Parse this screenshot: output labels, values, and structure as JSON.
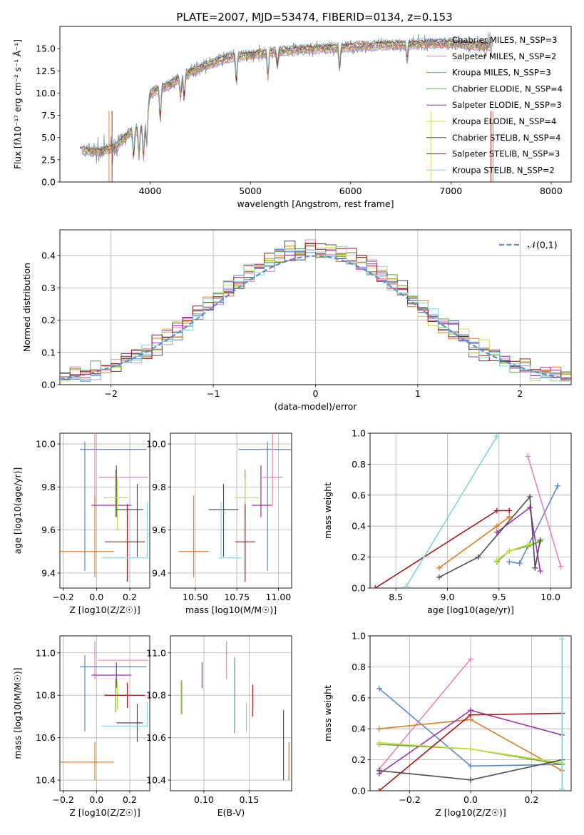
{
  "figure": {
    "title": "PLATE=2007, MJD=53474, FIBERID=0134, z=0.153"
  },
  "colors": {
    "c_mil": "#5b84d6",
    "s_mil": "#e184b9",
    "k_mil": "#e07b24",
    "c_elo": "#67a847",
    "s_elo": "#9b2fb5",
    "k_elo": "#c9e33c",
    "c_ste": "#4d4d4d",
    "s_ste": "#a31818",
    "k_ste": "#7fd6d8",
    "data": "#808080",
    "normal": "#5b8bd0"
  },
  "chart_data": [
    {
      "id": "spectrum",
      "type": "line",
      "xlabel": "wavelength [Angstrom, rest frame]",
      "ylabel": "Flux [fλ10⁻¹⁷ erg cm⁻² s⁻¹ Å⁻¹]",
      "xlim": [
        3100,
        8200
      ],
      "ylim": [
        0,
        17.5
      ],
      "xticks": [
        4000,
        5000,
        6000,
        7000,
        8000
      ],
      "yticks": [
        0.0,
        2.5,
        5.0,
        7.5,
        10.0,
        12.5,
        15.0
      ],
      "legend_position": "top-right",
      "legend": [
        {
          "label": "Chabrier MILES, N_SSP=3",
          "color_key": "c_mil"
        },
        {
          "label": "Salpeter MILES, N_SSP=2",
          "color_key": "s_mil"
        },
        {
          "label": "Kroupa MILES, N_SSP=3",
          "color_key": "k_mil"
        },
        {
          "label": "Chabrier ELODIE, N_SSP=4",
          "color_key": "c_elo"
        },
        {
          "label": "Salpeter ELODIE, N_SSP=3",
          "color_key": "s_elo"
        },
        {
          "label": "Kroupa ELODIE, N_SSP=4",
          "color_key": "k_elo"
        },
        {
          "label": "Chabrier STELIB, N_SSP=4",
          "color_key": "c_ste"
        },
        {
          "label": "Salpeter STELIB, N_SSP=3",
          "color_key": "s_ste"
        },
        {
          "label": "Kroupa STELIB, N_SSP=2",
          "color_key": "k_ste"
        }
      ],
      "continuum": [
        [
          3300,
          3.6
        ],
        [
          3500,
          3.4
        ],
        [
          3650,
          3.9
        ],
        [
          3800,
          5.6
        ],
        [
          3950,
          6.3
        ],
        [
          4000,
          10.0
        ],
        [
          4200,
          11.0
        ],
        [
          4400,
          12.4
        ],
        [
          4600,
          13.3
        ],
        [
          4800,
          14.1
        ],
        [
          5000,
          14.3
        ],
        [
          5200,
          14.6
        ],
        [
          5500,
          14.9
        ],
        [
          5800,
          15.1
        ],
        [
          6000,
          15.2
        ],
        [
          6300,
          15.4
        ],
        [
          6600,
          15.5
        ],
        [
          6800,
          15.6
        ],
        [
          7000,
          15.6
        ],
        [
          7200,
          15.4
        ],
        [
          7400,
          15.3
        ]
      ]
    },
    {
      "id": "residual-histogram",
      "type": "bar",
      "xlabel": "(data-model)/error",
      "ylabel": "Normed distribution",
      "xlim": [
        -2.5,
        2.5
      ],
      "ylim": [
        0,
        0.48
      ],
      "xticks": [
        -2,
        -1,
        0,
        1,
        2
      ],
      "yticks": [
        0.0,
        0.1,
        0.2,
        0.3,
        0.4
      ],
      "legend_position": "top-right",
      "legend_label": "𝒩(0,1)",
      "bin_width": 0.1
    },
    {
      "id": "age-vs-Z",
      "type": "scatter",
      "xlabel": "Z [log10(Z/Z☉)]",
      "ylabel": "age [log10(age/yr)]",
      "xlim": [
        -0.22,
        0.32
      ],
      "ylim": [
        9.33,
        10.05
      ],
      "xticks": [
        -0.2,
        0.0,
        0.2
      ],
      "yticks": [
        9.4,
        9.6,
        9.8,
        10.0
      ],
      "points": [
        {
          "c": "c_mil",
          "x": 0.1,
          "xe": 0.2,
          "y": 9.975,
          "ye": 0.0
        },
        {
          "c": "c_mil",
          "x": -0.07,
          "xe": 0.0,
          "y": 9.71,
          "ye": 0.3
        },
        {
          "c": "s_mil",
          "x": 0.16,
          "xe": 0.15,
          "y": 9.845,
          "ye": 0.0
        },
        {
          "c": "s_mil",
          "x": -0.01,
          "xe": 0.0,
          "y": 9.88,
          "ye": 0.17
        },
        {
          "c": "k_mil",
          "x": -0.06,
          "xe": 0.165,
          "y": 9.5,
          "ye": 0.0
        },
        {
          "c": "k_mil",
          "x": -0.01,
          "xe": 0.0,
          "y": 9.57,
          "ye": 0.19
        },
        {
          "c": "c_elo",
          "x": 0.115,
          "xe": 0.07,
          "y": 9.75,
          "ye": 0.0
        },
        {
          "c": "c_elo",
          "x": 0.115,
          "xe": 0.0,
          "y": 9.77,
          "ye": 0.11
        },
        {
          "c": "s_elo",
          "x": 0.09,
          "xe": 0.12,
          "y": 9.715,
          "ye": 0.0
        },
        {
          "c": "s_elo",
          "x": 0.12,
          "xe": 0.0,
          "y": 9.78,
          "ye": 0.12
        },
        {
          "c": "k_elo",
          "x": 0.12,
          "xe": 0.07,
          "y": 9.75,
          "ye": 0.0
        },
        {
          "c": "k_elo",
          "x": 0.125,
          "xe": 0.0,
          "y": 9.72,
          "ye": 0.12
        },
        {
          "c": "c_ste",
          "x": 0.2,
          "xe": 0.08,
          "y": 9.695,
          "ye": 0.0
        },
        {
          "c": "c_ste",
          "x": 0.245,
          "xe": 0.0,
          "y": 9.645,
          "ye": 0.17
        },
        {
          "c": "s_ste",
          "x": 0.17,
          "xe": 0.12,
          "y": 9.545,
          "ye": 0.0
        },
        {
          "c": "s_ste",
          "x": 0.185,
          "xe": 0.0,
          "y": 9.54,
          "ye": 0.18
        },
        {
          "c": "k_ste",
          "x": 0.17,
          "xe": 0.14,
          "y": 9.47,
          "ye": 0.0
        },
        {
          "c": "k_ste",
          "x": 0.305,
          "xe": 0.0,
          "y": 9.6,
          "ye": 0.13
        }
      ]
    },
    {
      "id": "age-vs-mass",
      "type": "scatter",
      "xlabel": "mass [log10(M/M☉)]",
      "ylabel": "",
      "xlim": [
        10.35,
        11.08
      ],
      "ylim": [
        9.33,
        10.05
      ],
      "xticks": [
        10.5,
        10.75,
        11.0
      ],
      "yticks": [
        9.4,
        9.6,
        9.8,
        10.0
      ],
      "points": [
        {
          "c": "c_mil",
          "x": 10.92,
          "xe": 0.16,
          "y": 9.975,
          "ye": 0.0
        },
        {
          "c": "c_mil",
          "x": 10.935,
          "xe": 0.0,
          "y": 9.71,
          "ye": 0.3
        },
        {
          "c": "s_mil",
          "x": 10.965,
          "xe": 0.06,
          "y": 9.845,
          "ye": 0.0
        },
        {
          "c": "s_mil",
          "x": 10.965,
          "xe": 0.0,
          "y": 9.88,
          "ye": 0.17
        },
        {
          "c": "k_mil",
          "x": 10.49,
          "xe": 0.09,
          "y": 9.5,
          "ye": 0.0
        },
        {
          "c": "k_mil",
          "x": 10.49,
          "xe": 0.0,
          "y": 9.57,
          "ye": 0.19
        },
        {
          "c": "c_elo",
          "x": 10.81,
          "xe": 0.07,
          "y": 9.75,
          "ye": 0.0
        },
        {
          "c": "c_elo",
          "x": 10.8,
          "xe": 0.0,
          "y": 9.77,
          "ye": 0.11
        },
        {
          "c": "s_elo",
          "x": 10.9,
          "xe": 0.06,
          "y": 9.715,
          "ye": 0.0
        },
        {
          "c": "s_elo",
          "x": 10.895,
          "xe": 0.0,
          "y": 9.78,
          "ye": 0.12
        },
        {
          "c": "k_elo",
          "x": 10.81,
          "xe": 0.07,
          "y": 9.75,
          "ye": 0.0
        },
        {
          "c": "k_elo",
          "x": 10.8,
          "xe": 0.0,
          "y": 9.72,
          "ye": 0.12
        },
        {
          "c": "c_ste",
          "x": 10.67,
          "xe": 0.09,
          "y": 9.695,
          "ye": 0.0
        },
        {
          "c": "c_ste",
          "x": 10.67,
          "xe": 0.0,
          "y": 9.645,
          "ye": 0.17
        },
        {
          "c": "s_ste",
          "x": 10.8,
          "xe": 0.06,
          "y": 9.545,
          "ye": 0.0
        },
        {
          "c": "s_ste",
          "x": 10.8,
          "xe": 0.0,
          "y": 9.54,
          "ye": 0.18
        },
        {
          "c": "k_ste",
          "x": 10.71,
          "xe": 0.07,
          "y": 9.47,
          "ye": 0.0
        },
        {
          "c": "k_ste",
          "x": 10.655,
          "xe": 0.0,
          "y": 9.6,
          "ye": 0.13
        }
      ]
    },
    {
      "id": "mass-weight-vs-age",
      "type": "line",
      "xlabel": "age [log10(age/yr)]",
      "ylabel": "mass weight",
      "xlim": [
        8.25,
        10.2
      ],
      "ylim": [
        0,
        1.0
      ],
      "xticks": [
        8.5,
        9.0,
        9.5,
        10.0
      ],
      "yticks": [
        0.0,
        0.2,
        0.4,
        0.6,
        0.8,
        1.0
      ],
      "series": [
        {
          "c": "c_mil",
          "x": [
            9.6,
            9.7,
            10.07
          ],
          "y": [
            0.17,
            0.16,
            0.66
          ]
        },
        {
          "c": "s_mil",
          "x": [
            9.78,
            10.1
          ],
          "y": [
            0.85,
            0.14
          ]
        },
        {
          "c": "k_mil",
          "x": [
            8.92,
            9.48,
            9.6
          ],
          "y": [
            0.13,
            0.4,
            0.46
          ]
        },
        {
          "c": "c_elo",
          "x": [
            9.48,
            9.6,
            9.78,
            9.9
          ],
          "y": [
            0.17,
            0.24,
            0.27,
            0.3
          ]
        },
        {
          "c": "s_elo",
          "x": [
            9.48,
            9.8,
            9.9
          ],
          "y": [
            0.36,
            0.52,
            0.11
          ]
        },
        {
          "c": "k_elo",
          "x": [
            9.48,
            9.6,
            9.78,
            9.9
          ],
          "y": [
            0.18,
            0.24,
            0.28,
            0.31
          ]
        },
        {
          "c": "c_ste",
          "x": [
            8.92,
            9.3,
            9.8,
            9.85,
            9.9
          ],
          "y": [
            0.07,
            0.2,
            0.59,
            0.13,
            0.31
          ]
        },
        {
          "c": "s_ste",
          "x": [
            8.3,
            9.48,
            9.6
          ],
          "y": [
            0.0,
            0.5,
            0.5
          ]
        },
        {
          "c": "k_ste",
          "x": [
            8.6,
            9.48
          ],
          "y": [
            0.01,
            0.98
          ]
        }
      ]
    },
    {
      "id": "mass-vs-Z",
      "type": "scatter",
      "xlabel": "Z [log10(Z/Z☉)]",
      "ylabel": "mass [log10(M/M☉)]",
      "xlim": [
        -0.22,
        0.32
      ],
      "ylim": [
        10.35,
        11.08
      ],
      "xticks": [
        -0.2,
        0.0,
        0.2
      ],
      "yticks": [
        10.4,
        10.6,
        10.8,
        11.0
      ],
      "points": [
        {
          "c": "c_mil",
          "x": 0.1,
          "xe": 0.2,
          "y": 10.935,
          "ye": 0.0
        },
        {
          "c": "c_mil",
          "x": -0.07,
          "xe": 0.0,
          "y": 10.81,
          "ye": 0.18
        },
        {
          "c": "s_mil",
          "x": 0.16,
          "xe": 0.15,
          "y": 10.965,
          "ye": 0.0
        },
        {
          "c": "s_mil",
          "x": -0.01,
          "xe": 0.0,
          "y": 10.965,
          "ye": 0.09
        },
        {
          "c": "k_mil",
          "x": -0.06,
          "xe": 0.165,
          "y": 10.485,
          "ye": 0.0
        },
        {
          "c": "k_mil",
          "x": -0.01,
          "xe": 0.0,
          "y": 10.49,
          "ye": 0.09
        },
        {
          "c": "c_elo",
          "x": 0.115,
          "xe": 0.07,
          "y": 10.8,
          "ye": 0.0
        },
        {
          "c": "c_elo",
          "x": 0.115,
          "xe": 0.0,
          "y": 10.8,
          "ye": 0.08
        },
        {
          "c": "s_elo",
          "x": 0.09,
          "xe": 0.12,
          "y": 10.895,
          "ye": 0.0
        },
        {
          "c": "s_elo",
          "x": 0.12,
          "xe": 0.0,
          "y": 10.895,
          "ye": 0.06
        },
        {
          "c": "k_elo",
          "x": 0.12,
          "xe": 0.07,
          "y": 10.8,
          "ye": 0.0
        },
        {
          "c": "k_elo",
          "x": 0.125,
          "xe": 0.0,
          "y": 10.8,
          "ye": 0.07
        },
        {
          "c": "c_ste",
          "x": 0.2,
          "xe": 0.08,
          "y": 10.67,
          "ye": 0.0
        },
        {
          "c": "c_ste",
          "x": 0.245,
          "xe": 0.0,
          "y": 10.67,
          "ye": 0.09
        },
        {
          "c": "s_ste",
          "x": 0.17,
          "xe": 0.12,
          "y": 10.8,
          "ye": 0.0
        },
        {
          "c": "s_ste",
          "x": 0.185,
          "xe": 0.0,
          "y": 10.8,
          "ye": 0.06
        },
        {
          "c": "k_ste",
          "x": 0.17,
          "xe": 0.14,
          "y": 10.655,
          "ye": 0.0
        },
        {
          "c": "k_ste",
          "x": 0.305,
          "xe": 0.0,
          "y": 10.71,
          "ye": 0.06
        }
      ]
    },
    {
      "id": "mass-vs-ebv",
      "type": "scatter",
      "xlabel": "E(B-V)",
      "ylabel": "",
      "xlim": [
        0.063,
        0.197
      ],
      "ylim": [
        10.35,
        11.08
      ],
      "xticks": [
        0.1,
        0.15
      ],
      "yticks": [
        10.4,
        10.6,
        10.8,
        11.0
      ],
      "points": [
        {
          "c": "c_mil",
          "x": 0.134,
          "xe": 0.0,
          "y": 10.8,
          "ye": 0.18
        },
        {
          "c": "s_mil",
          "x": 0.125,
          "xe": 0.0,
          "y": 10.965,
          "ye": 0.09
        },
        {
          "c": "k_mil",
          "x": 0.194,
          "xe": 0.0,
          "y": 10.49,
          "ye": 0.09
        },
        {
          "c": "c_elo",
          "x": 0.075,
          "xe": 0.0,
          "y": 10.79,
          "ye": 0.08
        },
        {
          "c": "s_elo",
          "x": 0.098,
          "xe": 0.0,
          "y": 10.895,
          "ye": 0.06
        },
        {
          "c": "k_elo",
          "x": 0.076,
          "xe": 0.0,
          "y": 10.79,
          "ye": 0.08
        },
        {
          "c": "c_ste",
          "x": 0.188,
          "xe": 0.0,
          "y": 10.565,
          "ye": 0.165
        },
        {
          "c": "s_ste",
          "x": 0.154,
          "xe": 0.0,
          "y": 10.775,
          "ye": 0.075
        },
        {
          "c": "k_ste",
          "x": 0.147,
          "xe": 0.0,
          "y": 10.695,
          "ye": 0.07
        }
      ]
    },
    {
      "id": "mass-weight-vs-Z",
      "type": "line",
      "xlabel": "Z [log10(Z/Z☉)]",
      "ylabel": "mass weight",
      "xlim": [
        -0.33,
        0.33
      ],
      "ylim": [
        0,
        1.0
      ],
      "xticks": [
        -0.2,
        0.0,
        0.2
      ],
      "yticks": [
        0.0,
        0.2,
        0.4,
        0.6,
        0.8,
        1.0
      ],
      "series": [
        {
          "c": "c_mil",
          "x": [
            -0.3,
            0.0,
            0.3
          ],
          "y": [
            0.66,
            0.16,
            0.17
          ]
        },
        {
          "c": "s_mil",
          "x": [
            -0.3,
            0.0
          ],
          "y": [
            0.14,
            0.85
          ]
        },
        {
          "c": "k_mil",
          "x": [
            -0.3,
            0.0,
            0.3
          ],
          "y": [
            0.4,
            0.46,
            0.13
          ]
        },
        {
          "c": "c_elo",
          "x": [
            -0.3,
            0.0,
            0.3
          ],
          "y": [
            0.3,
            0.27,
            0.17
          ]
        },
        {
          "c": "s_elo",
          "x": [
            -0.3,
            0.0,
            0.3
          ],
          "y": [
            0.11,
            0.52,
            0.36
          ]
        },
        {
          "c": "k_elo",
          "x": [
            -0.3,
            0.0,
            0.3
          ],
          "y": [
            0.31,
            0.27,
            0.18
          ]
        },
        {
          "c": "c_ste",
          "x": [
            -0.3,
            0.0,
            0.3
          ],
          "y": [
            0.13,
            0.07,
            0.2
          ]
        },
        {
          "c": "s_ste",
          "x": [
            -0.3,
            0.0,
            0.3
          ],
          "y": [
            0.0,
            0.49,
            0.5
          ]
        },
        {
          "c": "k_ste",
          "x": [
            0.3,
            0.3
          ],
          "y": [
            0.01,
            0.98
          ]
        }
      ]
    }
  ]
}
